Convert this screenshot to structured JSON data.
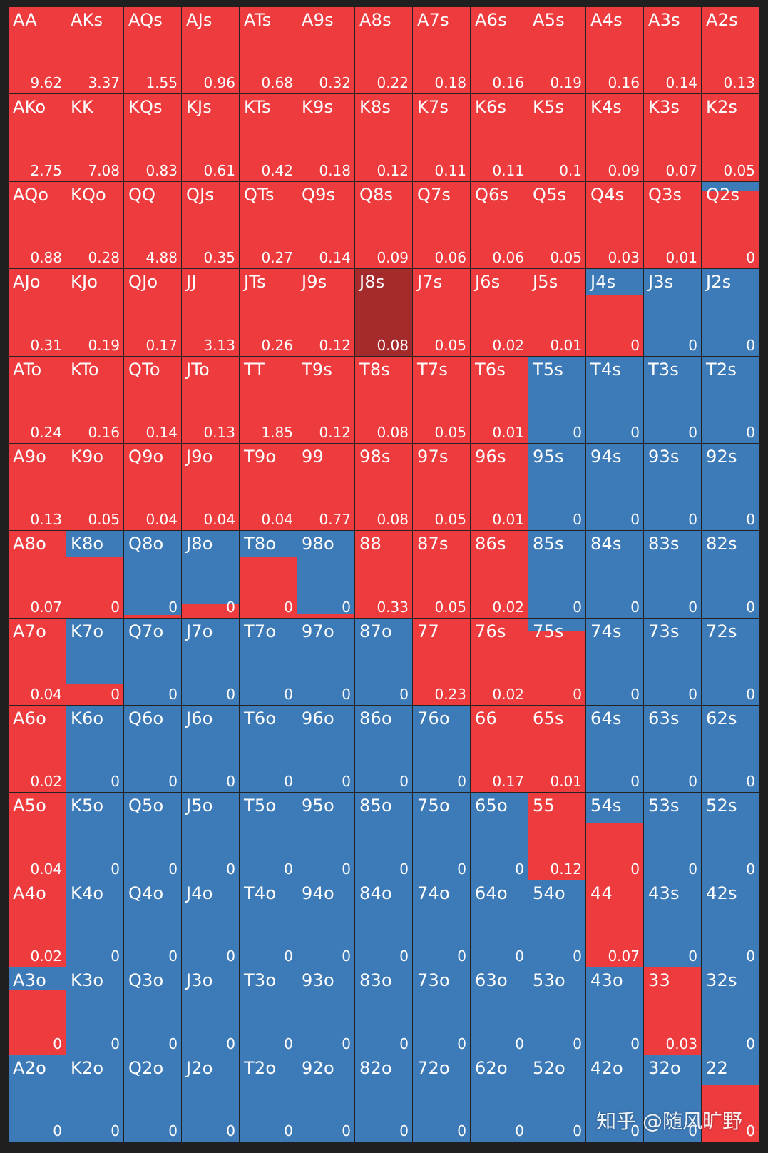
{
  "colors": {
    "raise": "#ee3b3e",
    "fold": "#3d7ab8",
    "selected": "#a52a2b"
  },
  "selected_hand": "J8s",
  "watermark": "知乎 @随风旷野",
  "cells": [
    [
      {
        "hand": "AA",
        "value": "9.62",
        "red": 1
      },
      {
        "hand": "AKs",
        "value": "3.37",
        "red": 1
      },
      {
        "hand": "AQs",
        "value": "1.55",
        "red": 1
      },
      {
        "hand": "AJs",
        "value": "0.96",
        "red": 1
      },
      {
        "hand": "ATs",
        "value": "0.68",
        "red": 1
      },
      {
        "hand": "A9s",
        "value": "0.32",
        "red": 1
      },
      {
        "hand": "A8s",
        "value": "0.22",
        "red": 1
      },
      {
        "hand": "A7s",
        "value": "0.18",
        "red": 1
      },
      {
        "hand": "A6s",
        "value": "0.16",
        "red": 1
      },
      {
        "hand": "A5s",
        "value": "0.19",
        "red": 1
      },
      {
        "hand": "A4s",
        "value": "0.16",
        "red": 1
      },
      {
        "hand": "A3s",
        "value": "0.14",
        "red": 1
      },
      {
        "hand": "A2s",
        "value": "0.13",
        "red": 1
      }
    ],
    [
      {
        "hand": "AKo",
        "value": "2.75",
        "red": 1
      },
      {
        "hand": "KK",
        "value": "7.08",
        "red": 1
      },
      {
        "hand": "KQs",
        "value": "0.83",
        "red": 1
      },
      {
        "hand": "KJs",
        "value": "0.61",
        "red": 1
      },
      {
        "hand": "KTs",
        "value": "0.42",
        "red": 1
      },
      {
        "hand": "K9s",
        "value": "0.18",
        "red": 1
      },
      {
        "hand": "K8s",
        "value": "0.12",
        "red": 1
      },
      {
        "hand": "K7s",
        "value": "0.11",
        "red": 1
      },
      {
        "hand": "K6s",
        "value": "0.11",
        "red": 1
      },
      {
        "hand": "K5s",
        "value": "0.1",
        "red": 1
      },
      {
        "hand": "K4s",
        "value": "0.09",
        "red": 1
      },
      {
        "hand": "K3s",
        "value": "0.07",
        "red": 1
      },
      {
        "hand": "K2s",
        "value": "0.05",
        "red": 1
      }
    ],
    [
      {
        "hand": "AQo",
        "value": "0.88",
        "red": 1
      },
      {
        "hand": "KQo",
        "value": "0.28",
        "red": 1
      },
      {
        "hand": "QQ",
        "value": "4.88",
        "red": 1
      },
      {
        "hand": "QJs",
        "value": "0.35",
        "red": 1
      },
      {
        "hand": "QTs",
        "value": "0.27",
        "red": 1
      },
      {
        "hand": "Q9s",
        "value": "0.14",
        "red": 1
      },
      {
        "hand": "Q8s",
        "value": "0.09",
        "red": 1
      },
      {
        "hand": "Q7s",
        "value": "0.06",
        "red": 1
      },
      {
        "hand": "Q6s",
        "value": "0.06",
        "red": 1
      },
      {
        "hand": "Q5s",
        "value": "0.05",
        "red": 1
      },
      {
        "hand": "Q4s",
        "value": "0.03",
        "red": 1
      },
      {
        "hand": "Q3s",
        "value": "0.01",
        "red": 1
      },
      {
        "hand": "Q2s",
        "value": "0",
        "red": 0.9
      }
    ],
    [
      {
        "hand": "AJo",
        "value": "0.31",
        "red": 1
      },
      {
        "hand": "KJo",
        "value": "0.19",
        "red": 1
      },
      {
        "hand": "QJo",
        "value": "0.17",
        "red": 1
      },
      {
        "hand": "JJ",
        "value": "3.13",
        "red": 1
      },
      {
        "hand": "JTs",
        "value": "0.26",
        "red": 1
      },
      {
        "hand": "J9s",
        "value": "0.12",
        "red": 1
      },
      {
        "hand": "J8s",
        "value": "0.08",
        "red": 1
      },
      {
        "hand": "J7s",
        "value": "0.05",
        "red": 1
      },
      {
        "hand": "J6s",
        "value": "0.02",
        "red": 1
      },
      {
        "hand": "J5s",
        "value": "0.01",
        "red": 1
      },
      {
        "hand": "J4s",
        "value": "0",
        "red": 0.7
      },
      {
        "hand": "J3s",
        "value": "0",
        "red": 0
      },
      {
        "hand": "J2s",
        "value": "0",
        "red": 0
      }
    ],
    [
      {
        "hand": "ATo",
        "value": "0.24",
        "red": 1
      },
      {
        "hand": "KTo",
        "value": "0.16",
        "red": 1
      },
      {
        "hand": "QTo",
        "value": "0.14",
        "red": 1
      },
      {
        "hand": "JTo",
        "value": "0.13",
        "red": 1
      },
      {
        "hand": "TT",
        "value": "1.85",
        "red": 1
      },
      {
        "hand": "T9s",
        "value": "0.12",
        "red": 1
      },
      {
        "hand": "T8s",
        "value": "0.08",
        "red": 1
      },
      {
        "hand": "T7s",
        "value": "0.05",
        "red": 1
      },
      {
        "hand": "T6s",
        "value": "0.01",
        "red": 1
      },
      {
        "hand": "T5s",
        "value": "0",
        "red": 0
      },
      {
        "hand": "T4s",
        "value": "0",
        "red": 0
      },
      {
        "hand": "T3s",
        "value": "0",
        "red": 0
      },
      {
        "hand": "T2s",
        "value": "0",
        "red": 0
      }
    ],
    [
      {
        "hand": "A9o",
        "value": "0.13",
        "red": 1
      },
      {
        "hand": "K9o",
        "value": "0.05",
        "red": 1
      },
      {
        "hand": "Q9o",
        "value": "0.04",
        "red": 1
      },
      {
        "hand": "J9o",
        "value": "0.04",
        "red": 1
      },
      {
        "hand": "T9o",
        "value": "0.04",
        "red": 1
      },
      {
        "hand": "99",
        "value": "0.77",
        "red": 1
      },
      {
        "hand": "98s",
        "value": "0.08",
        "red": 1
      },
      {
        "hand": "97s",
        "value": "0.05",
        "red": 1
      },
      {
        "hand": "96s",
        "value": "0.01",
        "red": 1
      },
      {
        "hand": "95s",
        "value": "0",
        "red": 0
      },
      {
        "hand": "94s",
        "value": "0",
        "red": 0
      },
      {
        "hand": "93s",
        "value": "0",
        "red": 0
      },
      {
        "hand": "92s",
        "value": "0",
        "red": 0
      }
    ],
    [
      {
        "hand": "A8o",
        "value": "0.07",
        "red": 1
      },
      {
        "hand": "K8o",
        "value": "0",
        "red": 0.7
      },
      {
        "hand": "Q8o",
        "value": "0",
        "red": 0.03
      },
      {
        "hand": "J8o",
        "value": "0",
        "red": 0.15
      },
      {
        "hand": "T8o",
        "value": "0",
        "red": 0.7
      },
      {
        "hand": "98o",
        "value": "0",
        "red": 0.04
      },
      {
        "hand": "88",
        "value": "0.33",
        "red": 1
      },
      {
        "hand": "87s",
        "value": "0.05",
        "red": 1
      },
      {
        "hand": "86s",
        "value": "0.02",
        "red": 1
      },
      {
        "hand": "85s",
        "value": "0",
        "red": 0
      },
      {
        "hand": "84s",
        "value": "0",
        "red": 0
      },
      {
        "hand": "83s",
        "value": "0",
        "red": 0
      },
      {
        "hand": "82s",
        "value": "0",
        "red": 0
      }
    ],
    [
      {
        "hand": "A7o",
        "value": "0.04",
        "red": 1
      },
      {
        "hand": "K7o",
        "value": "0",
        "red": 0.25
      },
      {
        "hand": "Q7o",
        "value": "0",
        "red": 0
      },
      {
        "hand": "J7o",
        "value": "0",
        "red": 0
      },
      {
        "hand": "T7o",
        "value": "0",
        "red": 0
      },
      {
        "hand": "97o",
        "value": "0",
        "red": 0
      },
      {
        "hand": "87o",
        "value": "0",
        "red": 0
      },
      {
        "hand": "77",
        "value": "0.23",
        "red": 1
      },
      {
        "hand": "76s",
        "value": "0.02",
        "red": 1
      },
      {
        "hand": "75s",
        "value": "0",
        "red": 0.85
      },
      {
        "hand": "74s",
        "value": "0",
        "red": 0
      },
      {
        "hand": "73s",
        "value": "0",
        "red": 0
      },
      {
        "hand": "72s",
        "value": "0",
        "red": 0
      }
    ],
    [
      {
        "hand": "A6o",
        "value": "0.02",
        "red": 1
      },
      {
        "hand": "K6o",
        "value": "0",
        "red": 0
      },
      {
        "hand": "Q6o",
        "value": "0",
        "red": 0
      },
      {
        "hand": "J6o",
        "value": "0",
        "red": 0
      },
      {
        "hand": "T6o",
        "value": "0",
        "red": 0
      },
      {
        "hand": "96o",
        "value": "0",
        "red": 0
      },
      {
        "hand": "86o",
        "value": "0",
        "red": 0
      },
      {
        "hand": "76o",
        "value": "0",
        "red": 0
      },
      {
        "hand": "66",
        "value": "0.17",
        "red": 1
      },
      {
        "hand": "65s",
        "value": "0.01",
        "red": 1
      },
      {
        "hand": "64s",
        "value": "0",
        "red": 0
      },
      {
        "hand": "63s",
        "value": "0",
        "red": 0
      },
      {
        "hand": "62s",
        "value": "0",
        "red": 0
      }
    ],
    [
      {
        "hand": "A5o",
        "value": "0.04",
        "red": 1
      },
      {
        "hand": "K5o",
        "value": "0",
        "red": 0
      },
      {
        "hand": "Q5o",
        "value": "0",
        "red": 0
      },
      {
        "hand": "J5o",
        "value": "0",
        "red": 0
      },
      {
        "hand": "T5o",
        "value": "0",
        "red": 0
      },
      {
        "hand": "95o",
        "value": "0",
        "red": 0
      },
      {
        "hand": "85o",
        "value": "0",
        "red": 0
      },
      {
        "hand": "75o",
        "value": "0",
        "red": 0
      },
      {
        "hand": "65o",
        "value": "0",
        "red": 0
      },
      {
        "hand": "55",
        "value": "0.12",
        "red": 1
      },
      {
        "hand": "54s",
        "value": "0",
        "red": 0.65
      },
      {
        "hand": "53s",
        "value": "0",
        "red": 0
      },
      {
        "hand": "52s",
        "value": "0",
        "red": 0
      }
    ],
    [
      {
        "hand": "A4o",
        "value": "0.02",
        "red": 1
      },
      {
        "hand": "K4o",
        "value": "0",
        "red": 0
      },
      {
        "hand": "Q4o",
        "value": "0",
        "red": 0
      },
      {
        "hand": "J4o",
        "value": "0",
        "red": 0
      },
      {
        "hand": "T4o",
        "value": "0",
        "red": 0
      },
      {
        "hand": "94o",
        "value": "0",
        "red": 0
      },
      {
        "hand": "84o",
        "value": "0",
        "red": 0
      },
      {
        "hand": "74o",
        "value": "0",
        "red": 0
      },
      {
        "hand": "64o",
        "value": "0",
        "red": 0
      },
      {
        "hand": "54o",
        "value": "0",
        "red": 0
      },
      {
        "hand": "44",
        "value": "0.07",
        "red": 1
      },
      {
        "hand": "43s",
        "value": "0",
        "red": 0
      },
      {
        "hand": "42s",
        "value": "0",
        "red": 0
      }
    ],
    [
      {
        "hand": "A3o",
        "value": "0",
        "red": 0.75
      },
      {
        "hand": "K3o",
        "value": "0",
        "red": 0
      },
      {
        "hand": "Q3o",
        "value": "0",
        "red": 0
      },
      {
        "hand": "J3o",
        "value": "0",
        "red": 0
      },
      {
        "hand": "T3o",
        "value": "0",
        "red": 0
      },
      {
        "hand": "93o",
        "value": "0",
        "red": 0
      },
      {
        "hand": "83o",
        "value": "0",
        "red": 0
      },
      {
        "hand": "73o",
        "value": "0",
        "red": 0
      },
      {
        "hand": "63o",
        "value": "0",
        "red": 0
      },
      {
        "hand": "53o",
        "value": "0",
        "red": 0
      },
      {
        "hand": "43o",
        "value": "0",
        "red": 0
      },
      {
        "hand": "33",
        "value": "0.03",
        "red": 1
      },
      {
        "hand": "32s",
        "value": "0",
        "red": 0
      }
    ],
    [
      {
        "hand": "A2o",
        "value": "0",
        "red": 0
      },
      {
        "hand": "K2o",
        "value": "0",
        "red": 0
      },
      {
        "hand": "Q2o",
        "value": "0",
        "red": 0
      },
      {
        "hand": "J2o",
        "value": "0",
        "red": 0
      },
      {
        "hand": "T2o",
        "value": "0",
        "red": 0
      },
      {
        "hand": "92o",
        "value": "0",
        "red": 0
      },
      {
        "hand": "82o",
        "value": "0",
        "red": 0
      },
      {
        "hand": "72o",
        "value": "0",
        "red": 0
      },
      {
        "hand": "62o",
        "value": "0",
        "red": 0
      },
      {
        "hand": "52o",
        "value": "0",
        "red": 0
      },
      {
        "hand": "42o",
        "value": "0",
        "red": 0
      },
      {
        "hand": "32o",
        "value": "0",
        "red": 0
      },
      {
        "hand": "22",
        "value": "0",
        "red": 0.65
      }
    ]
  ]
}
